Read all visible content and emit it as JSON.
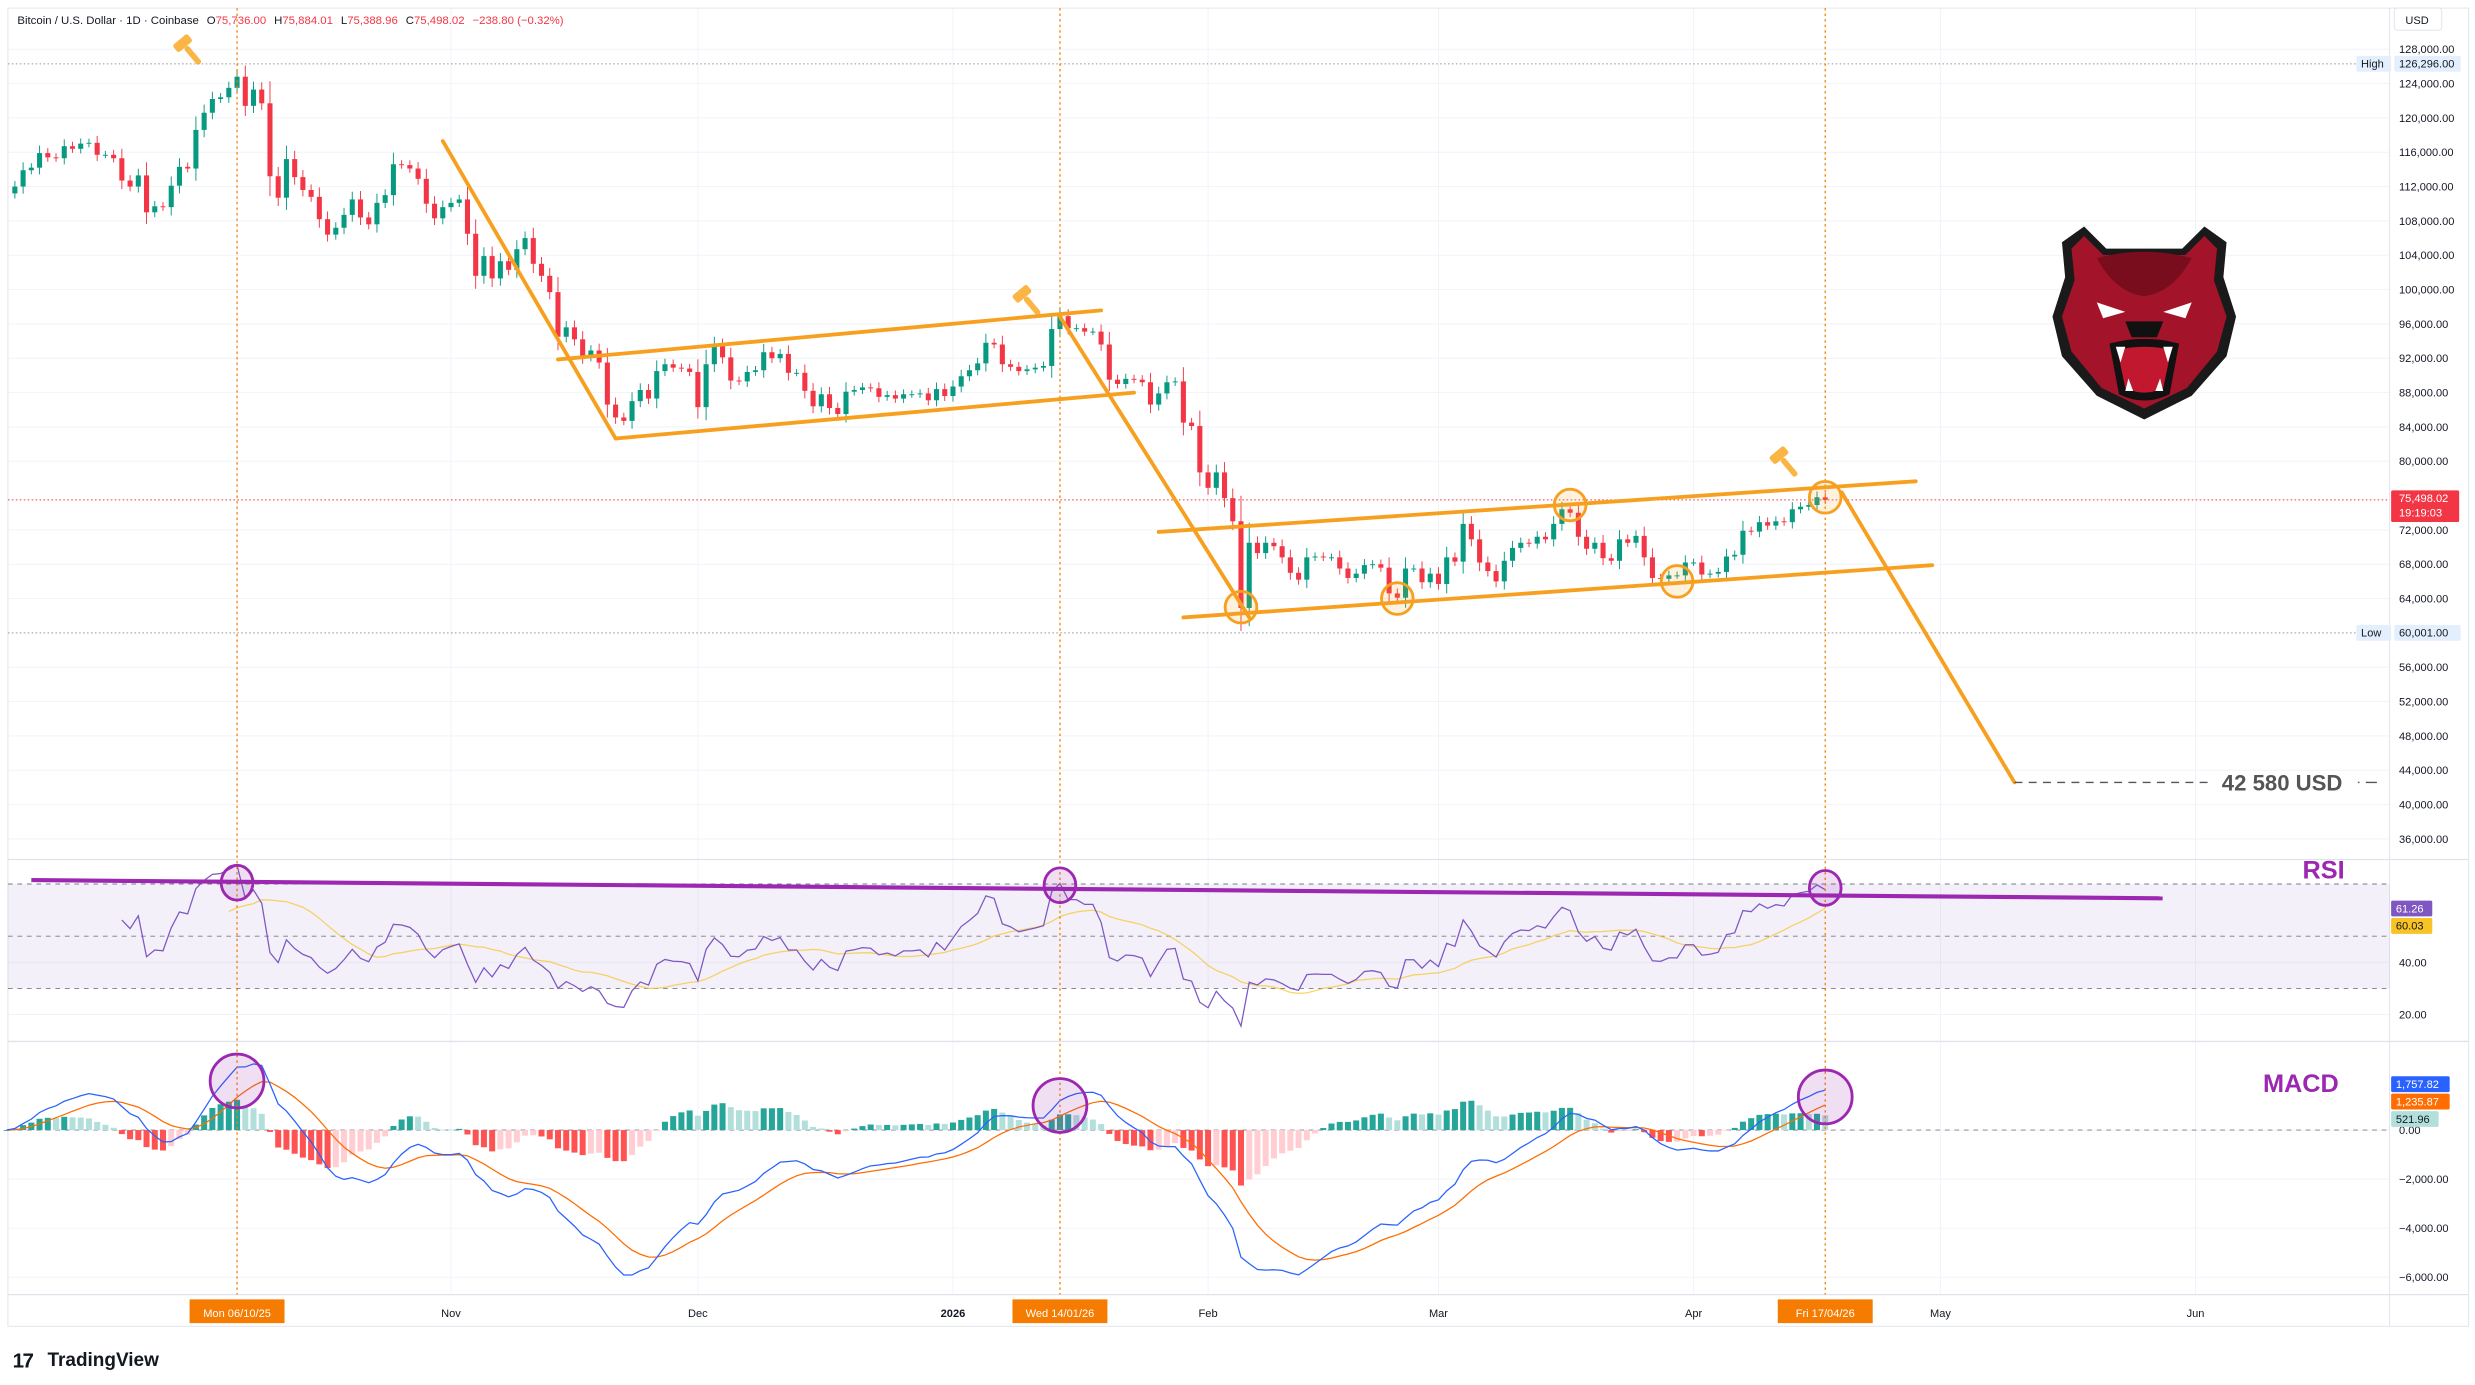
{
  "header": {
    "title": "Bitcoin / U.S. Dollar · 1D · Coinbase",
    "open_label": "O",
    "open": "75,736.00",
    "high_label": "H",
    "high": "75,884.01",
    "low_label": "L",
    "low": "75,388.96",
    "close_label": "C",
    "close": "75,498.02",
    "change": "−238.80 (−0.32%)"
  },
  "price_axis": {
    "currency": "USD",
    "labels": [
      "128,000.00",
      "124,000.00",
      "120,000.00",
      "116,000.00",
      "112,000.00",
      "108,000.00",
      "104,000.00",
      "100,000.00",
      "96,000.00",
      "92,000.00",
      "88,000.00",
      "84,000.00",
      "80,000.00",
      "72,000.00",
      "68,000.00",
      "64,000.00",
      "56,000.00",
      "52,000.00",
      "48,000.00",
      "44,000.00",
      "40,000.00",
      "36,000.00"
    ],
    "label_values": [
      128000,
      124000,
      120000,
      116000,
      112000,
      108000,
      104000,
      100000,
      96000,
      92000,
      88000,
      84000,
      80000,
      72000,
      68000,
      64000,
      56000,
      52000,
      48000,
      44000,
      40000,
      36000
    ],
    "high_tag": "High",
    "high_value": "126,296.00",
    "high_price": 126296,
    "low_tag": "Low",
    "low_value": "60,001.00",
    "low_price": 60001,
    "last_price": "75,498.02",
    "last_price_value": 75498.02,
    "countdown": "19:19:03"
  },
  "rsi_axis": {
    "labels": [
      "40.00",
      "20.00"
    ],
    "label_values": [
      40,
      20
    ],
    "rsi_value": "61.26",
    "rsi_ma_value": "60.03"
  },
  "macd_axis": {
    "labels": [
      "0.00",
      "−2,000.00",
      "−4,000.00",
      "−6,000.00"
    ],
    "label_values": [
      0,
      -2000,
      -4000,
      -6000
    ],
    "macd_value": "1,757.82",
    "signal_value": "1,235.87",
    "hist_value": "521.96"
  },
  "time_axis": {
    "ticks": [
      {
        "label": "Nov",
        "date": "2025-11-01"
      },
      {
        "label": "Dec",
        "date": "2025-12-01"
      },
      {
        "label": "2026",
        "date": "2026-01-01",
        "bold": true
      },
      {
        "label": "Feb",
        "date": "2026-02-01"
      },
      {
        "label": "Mar",
        "date": "2026-03-01"
      },
      {
        "label": "Apr",
        "date": "2026-04-01"
      },
      {
        "label": "May",
        "date": "2026-05-01"
      },
      {
        "label": "Jun",
        "date": "2026-06-01"
      }
    ],
    "markers": [
      {
        "label": "Mon 06/10/25",
        "date": "2025-10-06"
      },
      {
        "label": "Wed 14/01/26",
        "date": "2026-01-14"
      },
      {
        "label": "Fri 17/04/26",
        "date": "2026-04-17"
      }
    ]
  },
  "colors": {
    "up": "#089981",
    "down": "#f23645",
    "drawing": "#f7a01f",
    "marker": "#f57c00",
    "rsi": "#7e57c2",
    "rsi_ma": "#f7c325",
    "rsi_trend": "#9c27b0",
    "macd": "#2962ff",
    "signal": "#ff6d00",
    "hist_up_strong": "#26a69a",
    "hist_up_weak": "#b2dfdb",
    "hist_dn_strong": "#ff5252",
    "hist_dn_weak": "#ffcdd2"
  },
  "chart_data": {
    "type": "candlestick",
    "symbol": "Bitcoin / U.S. Dollar",
    "interval": "1D",
    "start_date": "2025-09-08",
    "closes": [
      111200,
      112000,
      113900,
      114200,
      115900,
      115400,
      115300,
      116700,
      116400,
      117000,
      117100,
      115700,
      115700,
      115300,
      112700,
      112000,
      113300,
      109000,
      109700,
      109600,
      112100,
      114300,
      114100,
      118600,
      120600,
      122200,
      122400,
      123500,
      124800,
      121400,
      123300,
      121700,
      113200,
      110700,
      115200,
      113100,
      111600,
      110800,
      108200,
      106400,
      107200,
      108700,
      110500,
      108400,
      107600,
      110100,
      111000,
      114600,
      114500,
      114100,
      112900,
      110000,
      108300,
      109600,
      110100,
      110500,
      106500,
      101600,
      103900,
      101300,
      103300,
      102300,
      104700,
      106000,
      103000,
      101600,
      99700,
      94500,
      95600,
      94200,
      92200,
      92900,
      91500,
      86600,
      85100,
      84700,
      87000,
      88300,
      87300,
      90500,
      91300,
      90900,
      90800,
      90400,
      86300,
      91300,
      93500,
      92100,
      89400,
      89300,
      90400,
      90600,
      92700,
      92000,
      92500,
      90300,
      90300,
      88200,
      86400,
      87800,
      86200,
      85500,
      88100,
      88300,
      88600,
      88500,
      87500,
      87700,
      87300,
      87800,
      87800,
      87900,
      87100,
      88400,
      87600,
      88700,
      89900,
      90600,
      91400,
      93800,
      93600,
      91300,
      91000,
      90500,
      90700,
      90900,
      91100,
      95400,
      96900,
      95500,
      95500,
      95100,
      95100,
      93600,
      89500,
      89000,
      89600,
      89500,
      89200,
      86600,
      87900,
      89200,
      89300,
      84500,
      84100,
      78700,
      76900,
      78700,
      75700,
      73000,
      62900,
      70500,
      69300,
      70500,
      70100,
      68800,
      67000,
      66200,
      68800,
      68900,
      68800,
      68800,
      67500,
      66400,
      66900,
      67900,
      68000,
      67600,
      64600,
      64100,
      67500,
      67500,
      65900,
      66900,
      65700,
      68800,
      68300,
      72700,
      70900,
      68200,
      67200,
      66000,
      68400,
      69900,
      70500,
      70400,
      71200,
      70900,
      72700,
      74400,
      74000,
      71200,
      69800,
      70500,
      68700,
      68400,
      70900,
      70500,
      71300,
      68800,
      66400,
      66300,
      66700,
      66700,
      68200,
      68200,
      66800,
      66900,
      67100,
      68900,
      69100,
      71900,
      71800,
      72900,
      72500,
      73000,
      72900,
      74400,
      74700,
      74900,
      75800,
      75500
    ],
    "y_range": [
      36000,
      128000
    ],
    "indicators": {
      "rsi": {
        "label": "RSI",
        "bands": [
          30,
          50,
          70
        ],
        "range": [
          20,
          75
        ]
      },
      "macd": {
        "label": "MACD",
        "fast": 12,
        "slow": 26,
        "signal": 9
      }
    },
    "drawings": {
      "trend_lines": [
        {
          "name": "downtrend-1",
          "from": {
            "date": "2025-10-31",
            "price": 117300
          },
          "to": {
            "date": "2025-11-21",
            "price": 82650
          }
        },
        {
          "name": "channel-1-upper",
          "from": {
            "date": "2025-11-14",
            "price": 91860
          },
          "to": {
            "date": "2026-01-19",
            "price": 97570
          }
        },
        {
          "name": "channel-1-lower",
          "from": {
            "date": "2025-11-21",
            "price": 82650
          },
          "to": {
            "date": "2026-01-23",
            "price": 87990
          }
        },
        {
          "name": "downtrend-2",
          "from": {
            "date": "2026-01-14",
            "price": 96840
          },
          "to": {
            "date": "2026-02-06",
            "price": 61800
          }
        },
        {
          "name": "channel-2-upper",
          "from": {
            "date": "2026-01-26",
            "price": 71760
          },
          "to": {
            "date": "2026-04-28",
            "price": 77660
          }
        },
        {
          "name": "channel-2-lower",
          "from": {
            "date": "2026-01-29",
            "price": 61800
          },
          "to": {
            "date": "2026-04-30",
            "price": 67890
          }
        },
        {
          "name": "projection",
          "from": {
            "date": "2026-04-19",
            "price": 76370
          },
          "to": {
            "date": "2026-05-10",
            "price": 42580
          }
        }
      ],
      "touch_points": [
        {
          "date": "2026-02-05",
          "price": 63000
        },
        {
          "date": "2026-02-24",
          "price": 64000
        },
        {
          "date": "2026-03-17",
          "price": 74900
        },
        {
          "date": "2026-03-30",
          "price": 66000
        },
        {
          "date": "2026-04-17",
          "price": 75800
        }
      ],
      "hammer_icons": [
        {
          "date": "2025-09-30",
          "price": 128000
        },
        {
          "date": "2026-01-10",
          "price": 98800
        },
        {
          "date": "2026-04-12",
          "price": 80000
        }
      ],
      "target": {
        "price": 42580,
        "label": "42 580 USD",
        "from_date": "2026-05-10"
      },
      "rsi_trend": {
        "from": {
          "date": "2025-09-11",
          "value": 71.5
        },
        "to": {
          "date": "2026-05-28",
          "value": 64.5
        }
      },
      "rsi_circles": [
        {
          "date": "2025-10-06",
          "value": 70.5
        },
        {
          "date": "2026-01-14",
          "value": 69.5
        },
        {
          "date": "2026-04-17",
          "value": 68.5
        }
      ],
      "macd_circles": [
        {
          "date": "2025-10-06",
          "value": 2000
        },
        {
          "date": "2026-01-14",
          "value": 1000
        },
        {
          "date": "2026-04-17",
          "value": 1350
        }
      ]
    }
  },
  "labels": {
    "rsi": "RSI",
    "macd": "MACD"
  },
  "branding": {
    "name": "TradingView",
    "mark": "17"
  }
}
